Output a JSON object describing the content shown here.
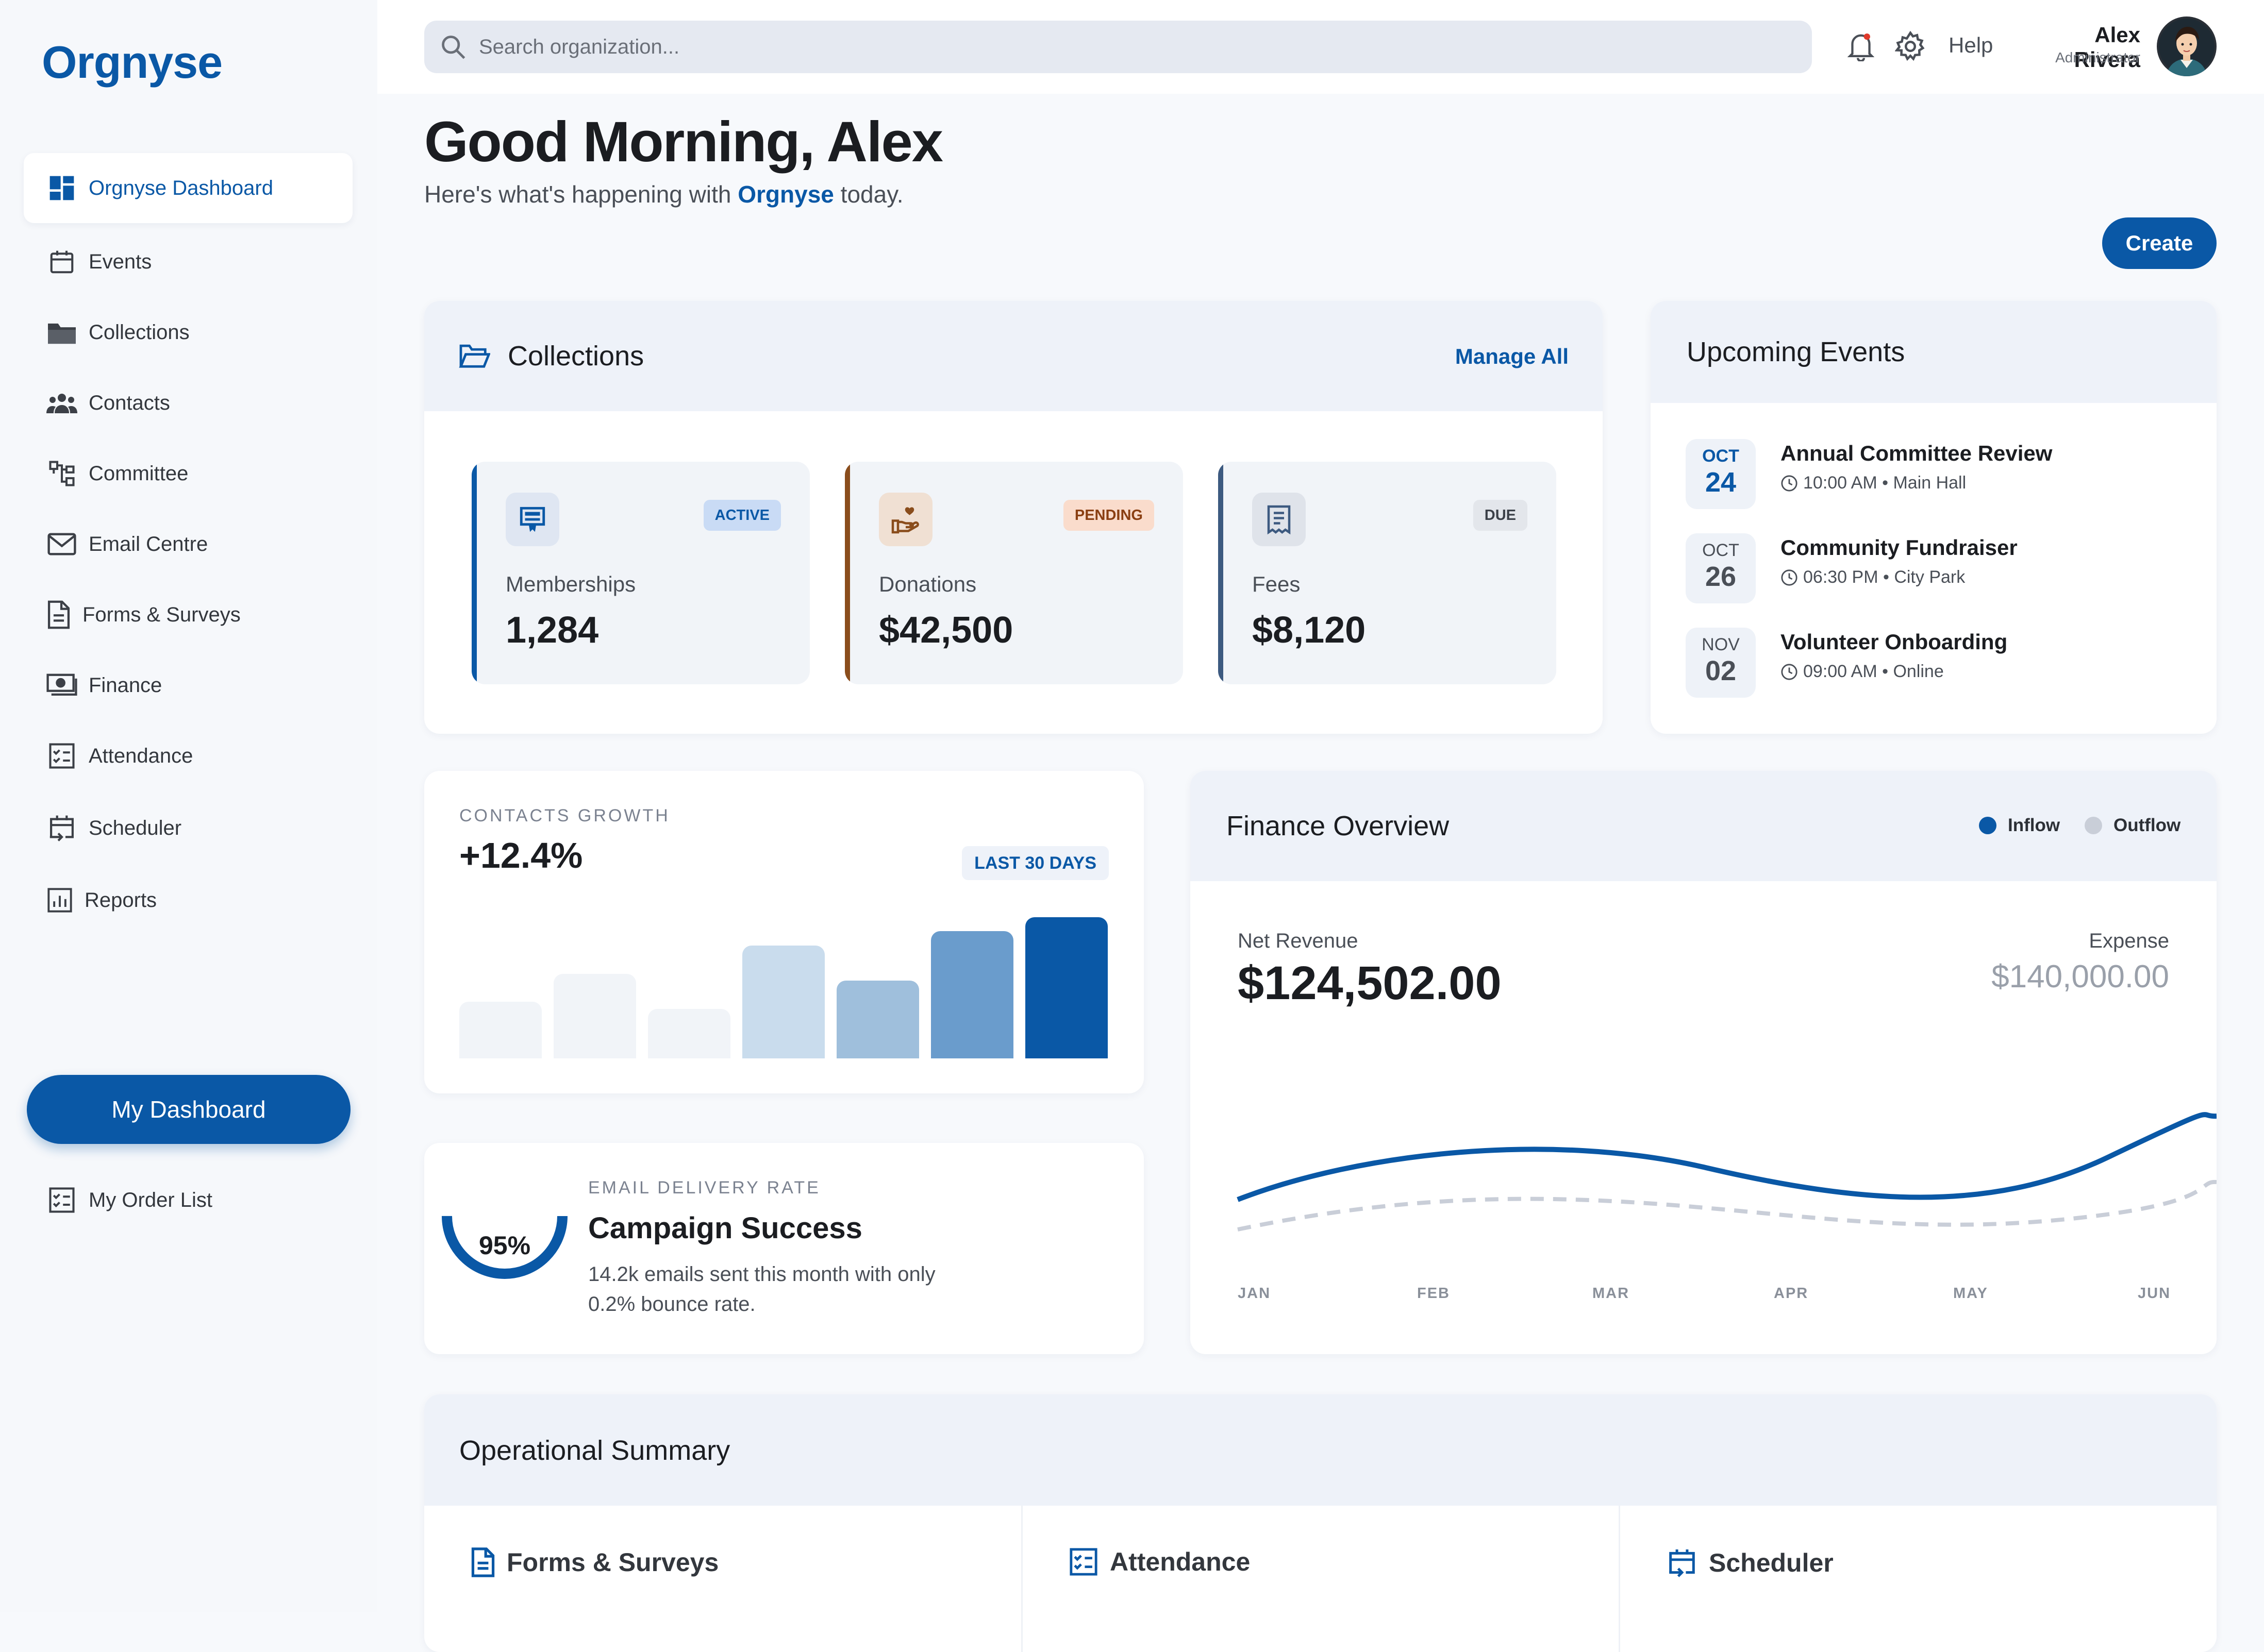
{
  "app": {
    "name": "Orgnyse"
  },
  "sidebar": {
    "items": [
      {
        "label": "Orgnyse Dashboard",
        "icon": "dashboard-icon"
      },
      {
        "label": "Events",
        "icon": "calendar-icon"
      },
      {
        "label": "Collections",
        "icon": "folder-icon"
      },
      {
        "label": "Contacts",
        "icon": "people-icon"
      },
      {
        "label": "Committee",
        "icon": "org-chart-icon"
      },
      {
        "label": "Email Centre",
        "icon": "mail-icon"
      },
      {
        "label": "Forms & Surveys",
        "icon": "document-icon"
      },
      {
        "label": "Finance",
        "icon": "money-icon"
      },
      {
        "label": "Attendance",
        "icon": "checklist-icon"
      },
      {
        "label": "Scheduler",
        "icon": "calendar-arrow-icon"
      },
      {
        "label": "Reports",
        "icon": "report-icon"
      }
    ],
    "dashboard_button": "My Dashboard",
    "order_list": "My Order List"
  },
  "header": {
    "search_placeholder": "Search organization...",
    "help": "Help",
    "user_name": "Alex Rivera",
    "user_role": "Administrator"
  },
  "greeting": {
    "title": "Good Morning, Alex",
    "sub_before": "Here's what's happening with ",
    "sub_org": "Orgnyse",
    "sub_after": " today.",
    "create": "Create"
  },
  "collections": {
    "title": "Collections",
    "manage": "Manage All",
    "stats": [
      {
        "label": "Memberships",
        "value": "1,284",
        "badge": "ACTIVE",
        "icon": "membership-card-icon",
        "color": "#0a58a6"
      },
      {
        "label": "Donations",
        "value": "$42,500",
        "badge": "PENDING",
        "icon": "donation-hand-icon",
        "color": "#8a4d1c"
      },
      {
        "label": "Fees",
        "value": "$8,120",
        "badge": "DUE",
        "icon": "receipt-icon",
        "color": "#3d5a80"
      }
    ]
  },
  "events": {
    "title": "Upcoming Events",
    "items": [
      {
        "month": "OCT",
        "day": "24",
        "title": "Annual Committee Review",
        "meta": "10:00 AM • Main Hall"
      },
      {
        "month": "OCT",
        "day": "26",
        "title": "Community Fundraiser",
        "meta": "06:30 PM • City Park"
      },
      {
        "month": "NOV",
        "day": "02",
        "title": "Volunteer Onboarding",
        "meta": "09:00 AM • Online"
      }
    ]
  },
  "growth": {
    "caption": "CONTACTS GROWTH",
    "value": "+12.4%",
    "badge": "LAST 30 DAYS",
    "bars": [
      0.4,
      0.6,
      0.35,
      0.8,
      0.55,
      0.9,
      1.0
    ]
  },
  "campaign": {
    "caption": "EMAIL DELIVERY RATE",
    "percent": "95%",
    "rate": 0.95,
    "title": "Campaign Success",
    "desc": "14.2k emails sent this month with only 0.2% bounce rate."
  },
  "finance": {
    "title": "Finance Overview",
    "legend": {
      "inflow": "Inflow",
      "outflow": "Outflow"
    },
    "net_label": "Net Revenue",
    "net_value": "$124,502.00",
    "expense_label": "Expense",
    "expense_value": "$140,000.00",
    "months": [
      "JAN",
      "FEB",
      "MAR",
      "APR",
      "MAY",
      "JUN"
    ],
    "colors": {
      "inflow": "#0a58a6",
      "outflow": "#c9ced8"
    }
  },
  "ops": {
    "title": "Operational Summary",
    "columns": [
      {
        "label": "Forms & Surveys",
        "icon": "document-icon"
      },
      {
        "label": "Attendance",
        "icon": "checklist-icon"
      },
      {
        "label": "Scheduler",
        "icon": "calendar-arrow-icon"
      }
    ]
  }
}
